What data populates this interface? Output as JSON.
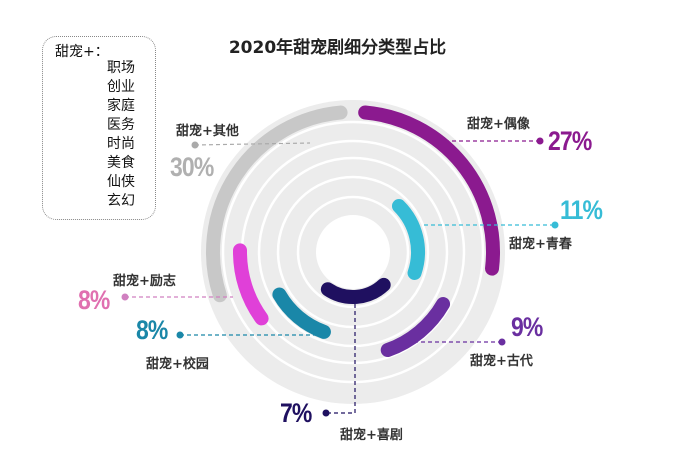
{
  "chart_data": {
    "type": "radial-bar",
    "title": "2020年甜宠剧细分类型占比",
    "unit": "%",
    "series": [
      {
        "name": "甜宠+其他",
        "value": 30,
        "label": "30%",
        "color": "#c8c8c8"
      },
      {
        "name": "甜宠+偶像",
        "value": 27,
        "label": "27%",
        "color": "#8b1a8f"
      },
      {
        "name": "甜宠+青春",
        "value": 11,
        "label": "11%",
        "color": "#36bcd6"
      },
      {
        "name": "甜宠+古代",
        "value": 9,
        "label": "9%",
        "color": "#6a2fa0"
      },
      {
        "name": "甜宠+喜剧",
        "value": 7,
        "label": "7%",
        "color": "#1f1060"
      },
      {
        "name": "甜宠+校园",
        "value": 8,
        "label": "8%",
        "color": "#1a87a8"
      },
      {
        "name": "甜宠+励志",
        "value": 8,
        "label": "8%",
        "color": "#e040d8"
      }
    ],
    "note": {
      "heading": "甜宠+：",
      "items": [
        "职场",
        "创业",
        "家庭",
        "医务",
        "时尚",
        "美食",
        "仙侠",
        "玄幻"
      ]
    }
  }
}
